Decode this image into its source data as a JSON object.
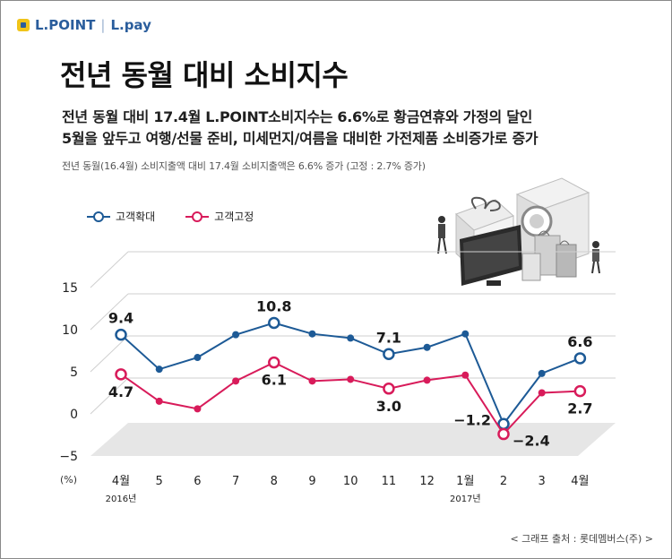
{
  "brand": {
    "name1": "L.POINT",
    "separator": "|",
    "name2": "L.pay"
  },
  "header": {
    "title": "전년 동월 대비 소비지수",
    "subtitle_line1": "전년 동월 대비 17.4월 L.POINT소비지수는 6.6%로 황금연휴와 가정의 달인",
    "subtitle_line2": "5월을 앞두고 여행/선물 준비, 미세먼지/여름을 대비한 가전제품 소비증가로 증가",
    "note": "전년 동월(16.4월) 소비지출액 대비 17.4월 소비지출액은 6.6% 증가 (고정 : 2.7% 증가)"
  },
  "source": "< 그래프 출처 : 롯데멤버스(주) >",
  "colors": {
    "blue": "#1d5a96",
    "red": "#d81b5a",
    "floor": "#e6e6e6",
    "grid": "#cfcfcf"
  },
  "chart_data": {
    "type": "line",
    "title": "전년 동월 대비 소비지수",
    "ylabel": "(%)",
    "ylim": [
      -5,
      15
    ],
    "yticks": [
      -5,
      0,
      5,
      10,
      15
    ],
    "categories": [
      "4월",
      "5",
      "6",
      "7",
      "8",
      "9",
      "10",
      "11",
      "12",
      "1월",
      "2",
      "3",
      "4월"
    ],
    "year_labels": [
      {
        "index": 0,
        "label": "2016년"
      },
      {
        "index": 9,
        "label": "2017년"
      }
    ],
    "series": [
      {
        "name": "고객확대",
        "color": "#1d5a96",
        "values": [
          9.4,
          5.3,
          6.7,
          9.4,
          10.8,
          9.5,
          9.0,
          7.1,
          7.9,
          9.5,
          -1.2,
          4.8,
          6.6
        ],
        "labels": [
          {
            "index": 0,
            "text": "9.4",
            "pos": "above"
          },
          {
            "index": 4,
            "text": "10.8",
            "pos": "above"
          },
          {
            "index": 7,
            "text": "7.1",
            "pos": "above"
          },
          {
            "index": 10,
            "text": "−1.2",
            "pos": "left"
          },
          {
            "index": 12,
            "text": "6.6",
            "pos": "above"
          }
        ]
      },
      {
        "name": "고객고정",
        "color": "#d81b5a",
        "values": [
          4.7,
          1.5,
          0.6,
          3.9,
          6.1,
          3.9,
          4.1,
          3.0,
          4.0,
          4.6,
          -2.4,
          2.5,
          2.7
        ],
        "labels": [
          {
            "index": 0,
            "text": "4.7",
            "pos": "below"
          },
          {
            "index": 4,
            "text": "6.1",
            "pos": "below"
          },
          {
            "index": 7,
            "text": "3.0",
            "pos": "below"
          },
          {
            "index": 10,
            "text": "−2.4",
            "pos": "right"
          },
          {
            "index": 12,
            "text": "2.7",
            "pos": "below"
          }
        ]
      }
    ]
  }
}
